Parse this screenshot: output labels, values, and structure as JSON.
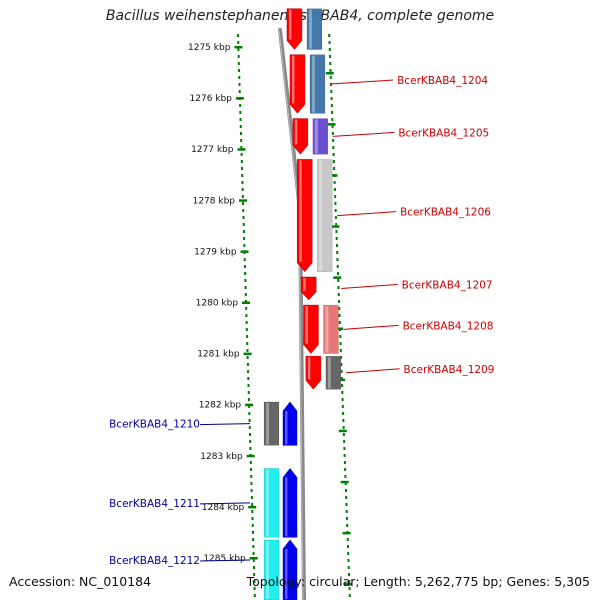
{
  "title": "Bacillus weihenstephanensis KBAB4, complete genome",
  "accession": "Accession: NC_010184",
  "topology": "Topology: circular; Length: 5,262,775 bp; Genes: 5,305",
  "colors": {
    "label_forward": "#cc0000",
    "label_reverse": "#000099",
    "tick_mark": "#008000",
    "backbone": "#888888",
    "gene_forward": "#ff0000",
    "gene_reverse": "#0000ee"
  },
  "ticks": [
    "1275 kbp",
    "1276 kbp",
    "1277 kbp",
    "1278 kbp",
    "1279 kbp",
    "1280 kbp",
    "1281 kbp",
    "1282 kbp",
    "1283 kbp",
    "1284 kbp",
    "1285 kbp"
  ],
  "genes_forward": [
    {
      "label": "",
      "start_kbp": 1274.25,
      "end_kbp": 1275.05,
      "cog_color": "#4477aa"
    },
    {
      "label": "BcerKBAB4_1204",
      "start_kbp": 1275.15,
      "end_kbp": 1276.3,
      "cog_color": "#4477aa"
    },
    {
      "label": "BcerKBAB4_1205",
      "start_kbp": 1276.4,
      "end_kbp": 1277.1,
      "cog_color": "#6a4fd0"
    },
    {
      "label": "BcerKBAB4_1206",
      "start_kbp": 1277.2,
      "end_kbp": 1279.4,
      "cog_color": "#c8c8c8"
    },
    {
      "label": "BcerKBAB4_1207",
      "start_kbp": 1279.5,
      "end_kbp": 1279.95,
      "cog_color": ""
    },
    {
      "label": "BcerKBAB4_1208",
      "start_kbp": 1280.05,
      "end_kbp": 1281.0,
      "cog_color": "#e77777"
    },
    {
      "label": "BcerKBAB4_1209",
      "start_kbp": 1281.05,
      "end_kbp": 1281.7,
      "cog_color": "#666666"
    }
  ],
  "genes_reverse": [
    {
      "label": "BcerKBAB4_1210",
      "start_kbp": 1281.75,
      "end_kbp": 1282.6,
      "cog_color": "#666666"
    },
    {
      "label": "BcerKBAB4_1211",
      "start_kbp": 1283.05,
      "end_kbp": 1284.4,
      "cog_color": "#22eeee"
    },
    {
      "label": "BcerKBAB4_1212",
      "start_kbp": 1284.45,
      "end_kbp": 1285.9,
      "cog_color": "#22eeee"
    }
  ]
}
